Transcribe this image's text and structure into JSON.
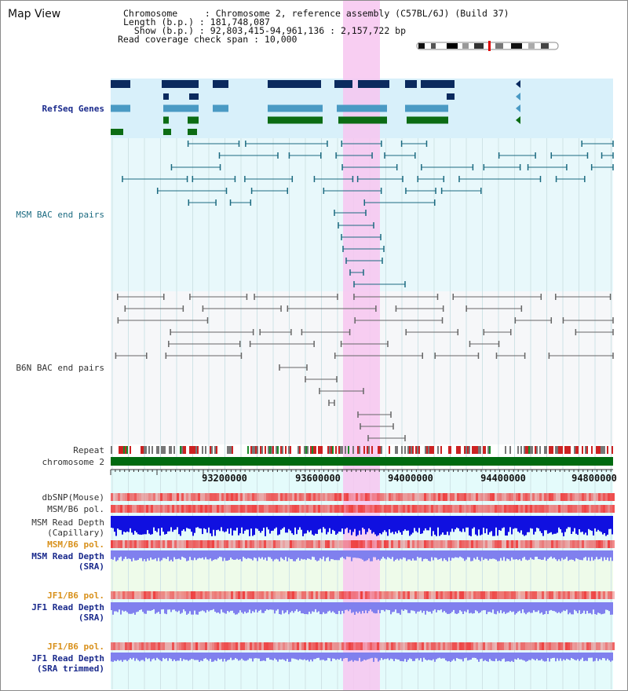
{
  "header": {
    "title": "Map View",
    "info_lines": [
      "Chromosome     : Chromosome 2, reference assembly (C57BL/6J) (Build 37)",
      "Length (b.p.) : 181,748,087",
      "  Show (b.p.) : 92,803,415-94,961,136 : 2,157,722 bp",
      "Read coverage check span : 10,000"
    ]
  },
  "tracks": {
    "refseq": "RefSeq Genes",
    "msm_bac": "MSM BAC end pairs",
    "b6n_bac": "B6N BAC end pairs",
    "repeat": "Repeat",
    "chromosome": "chromosome 2",
    "dbsnp": "dbSNP(Mouse)",
    "msm_pol": "MSM/B6 pol.",
    "msm_depth_cap_1": "MSM Read Depth",
    "msm_depth_cap_2": "(Capillary)",
    "msm_pol_2": "MSM/B6 pol.",
    "msm_depth_sra_1": "MSM Read Depth",
    "msm_depth_sra_2": "(SRA)",
    "jf1_pol": "JF1/B6 pol.",
    "jf1_depth_1": "JF1 Read Depth",
    "jf1_depth_2": "(SRA)",
    "jf1_pol_2": "JF1/B6 pol.",
    "jf1_trim_1": "JF1 Read Depth",
    "jf1_trim_2": "(SRA trimmed)"
  },
  "axis": {
    "ticks": [
      "93200000",
      "93600000",
      "94000000",
      "94400000",
      "94800000"
    ]
  },
  "colors": {
    "highlight": "#f7c6f0",
    "refseq_bg": "#d8f0fa",
    "msm_bg": "#e8f8fb",
    "b6n_bg": "#f6f7f9",
    "gene_dark": "#0b2a5e",
    "gene_mid": "#4a9ac4",
    "gene_green": "#0c6c14",
    "msm_line": "#1b6a80",
    "b6n_line": "#666666",
    "depth_blue": "#1010e0",
    "depth_lavender": "#8080ee",
    "pol_red": "#ee4040"
  }
}
